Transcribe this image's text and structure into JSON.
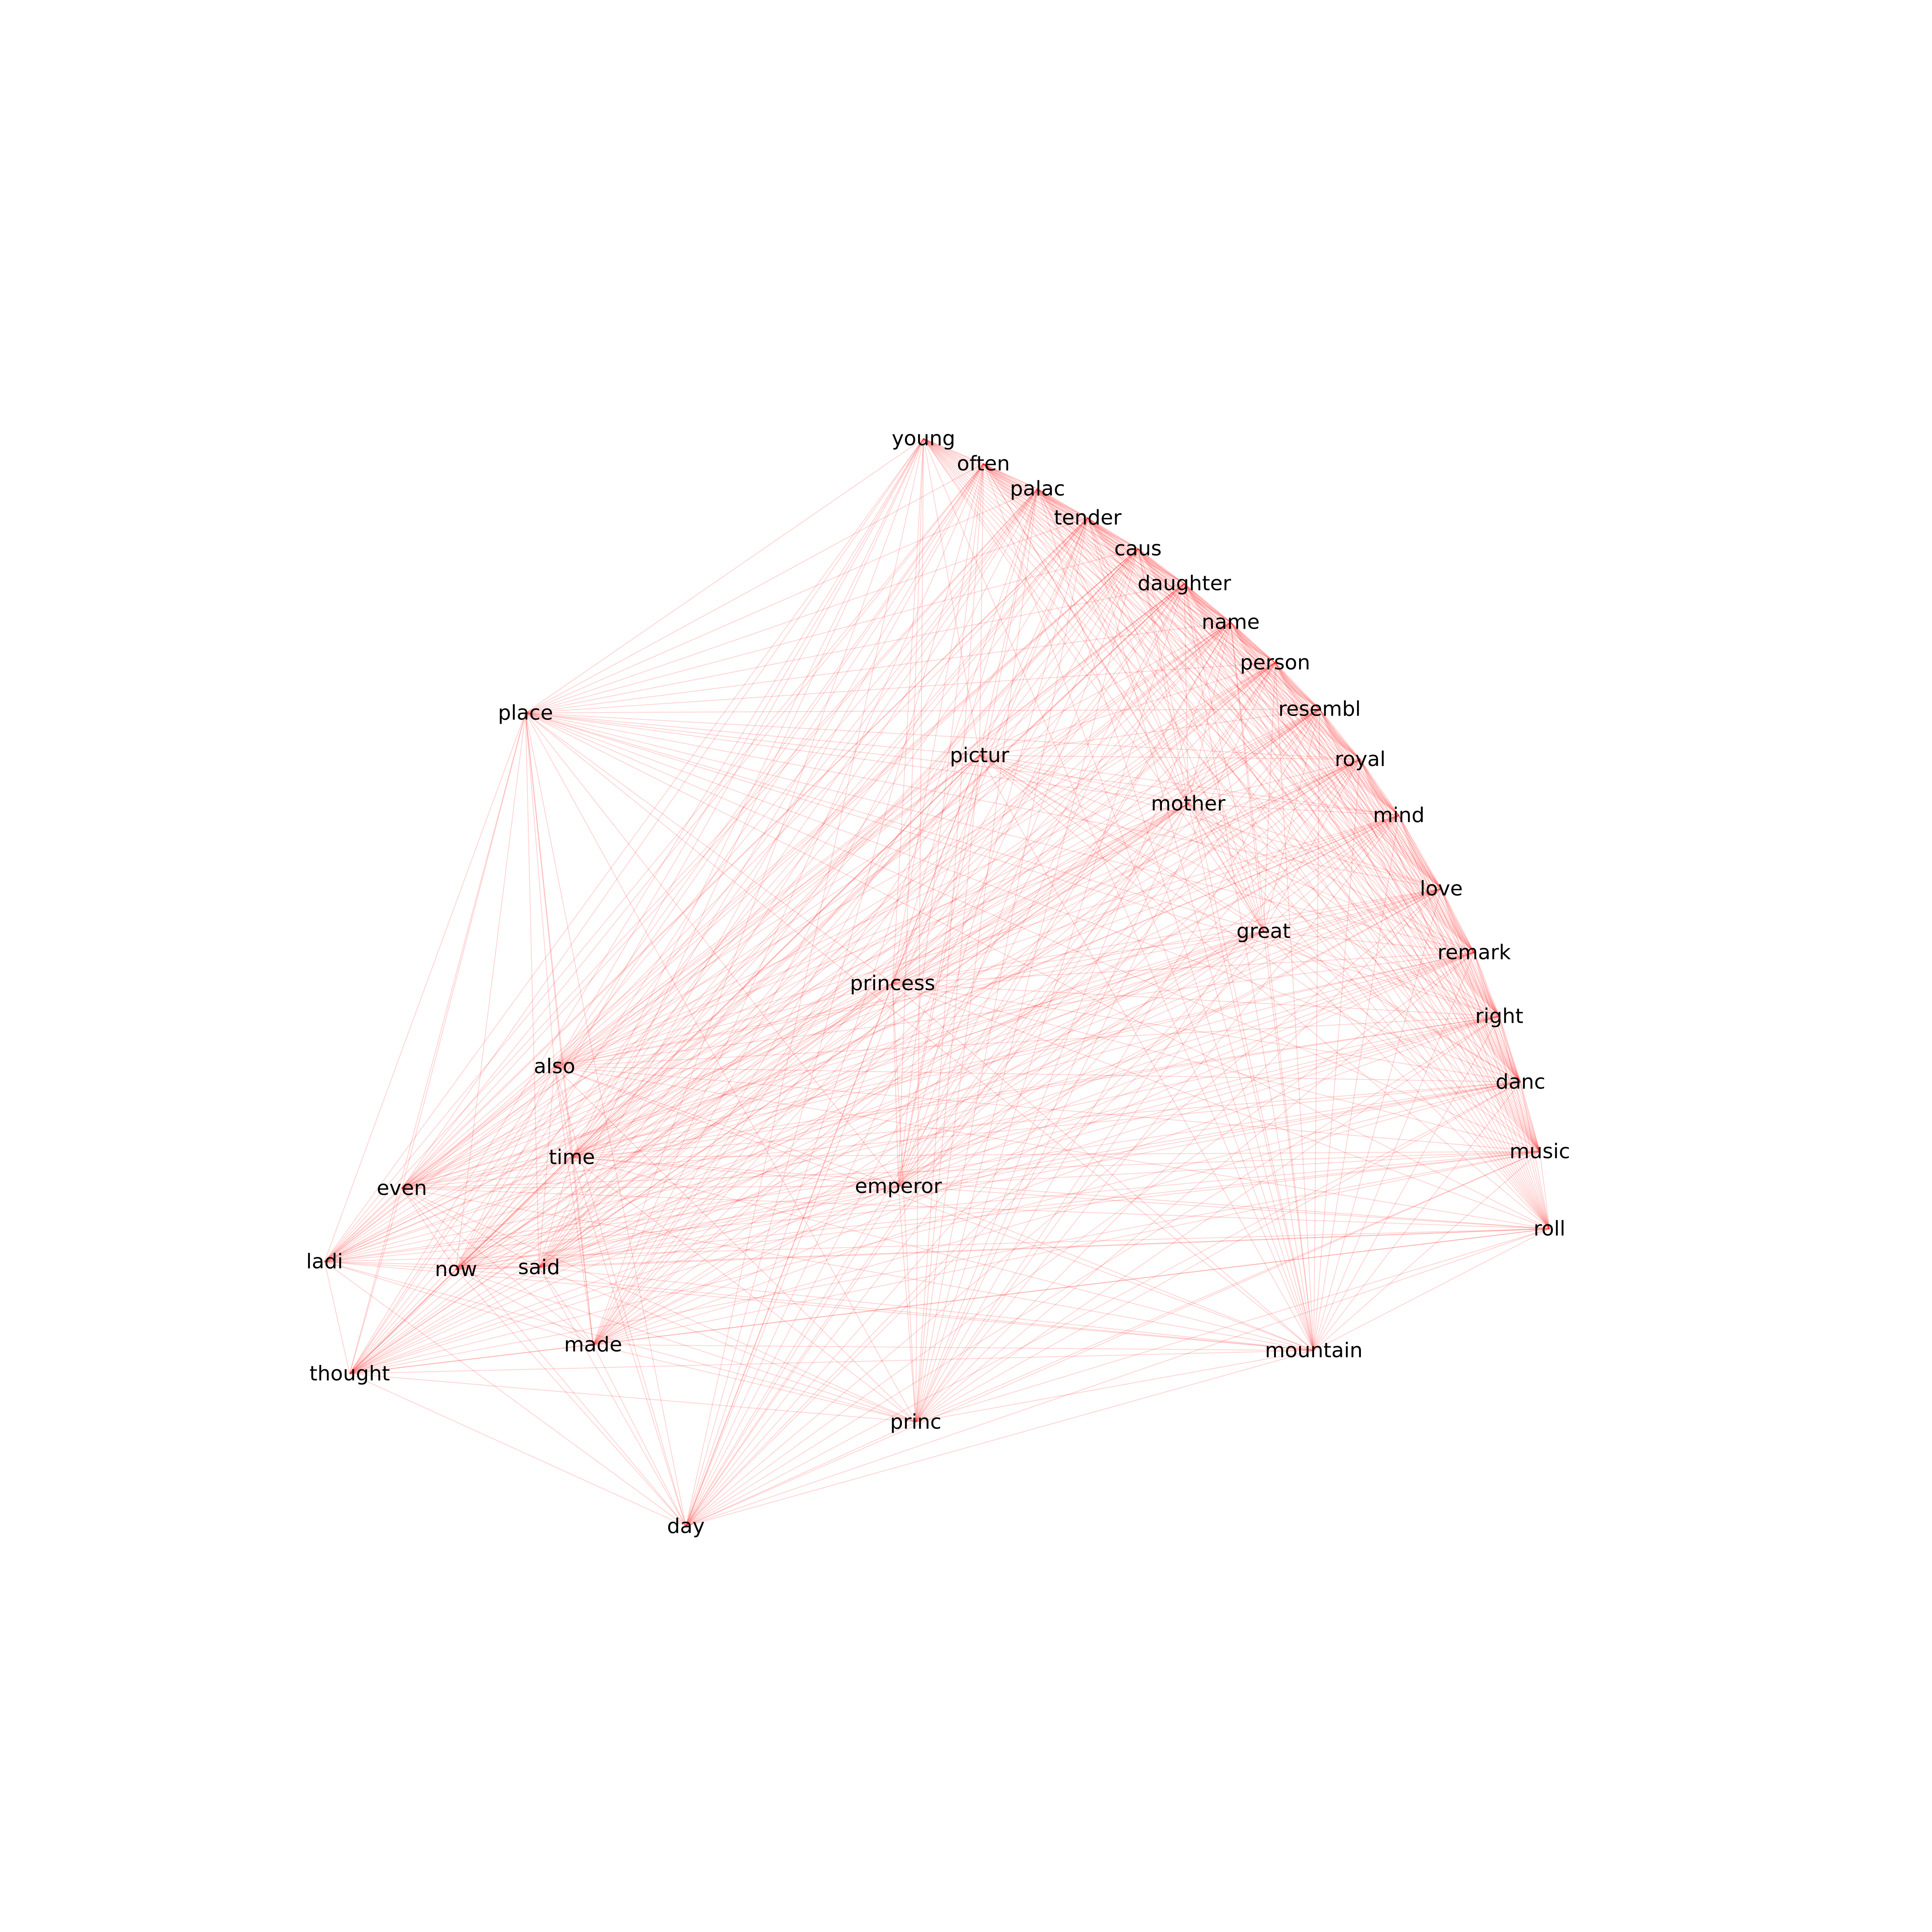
{
  "chart_data": {
    "type": "network",
    "edge_color": "#ff0000",
    "label_color": "#000000",
    "background": "#ffffff",
    "nodes": [
      {
        "id": "young",
        "label": "young"
      },
      {
        "id": "often",
        "label": "often"
      },
      {
        "id": "palac",
        "label": "palac"
      },
      {
        "id": "tender",
        "label": "tender"
      },
      {
        "id": "caus",
        "label": "caus"
      },
      {
        "id": "daughter",
        "label": "daughter"
      },
      {
        "id": "name",
        "label": "name"
      },
      {
        "id": "person",
        "label": "person"
      },
      {
        "id": "resembl",
        "label": "resembl"
      },
      {
        "id": "royal",
        "label": "royal"
      },
      {
        "id": "mind",
        "label": "mind"
      },
      {
        "id": "place",
        "label": "place"
      },
      {
        "id": "pictur",
        "label": "pictur"
      },
      {
        "id": "mother",
        "label": "mother"
      },
      {
        "id": "love",
        "label": "love"
      },
      {
        "id": "great",
        "label": "great"
      },
      {
        "id": "remark",
        "label": "remark"
      },
      {
        "id": "princess",
        "label": "princess"
      },
      {
        "id": "right",
        "label": "right"
      },
      {
        "id": "also",
        "label": "also"
      },
      {
        "id": "danc",
        "label": "danc"
      },
      {
        "id": "music",
        "label": "music"
      },
      {
        "id": "time",
        "label": "time"
      },
      {
        "id": "emperor",
        "label": "emperor"
      },
      {
        "id": "even",
        "label": "even"
      },
      {
        "id": "roll",
        "label": "roll"
      },
      {
        "id": "ladi",
        "label": "ladi"
      },
      {
        "id": "now",
        "label": "now"
      },
      {
        "id": "said",
        "label": "said"
      },
      {
        "id": "made",
        "label": "made"
      },
      {
        "id": "mountain",
        "label": "mountain"
      },
      {
        "id": "thought",
        "label": "thought"
      },
      {
        "id": "princ",
        "label": "princ"
      },
      {
        "id": "day",
        "label": "day"
      }
    ],
    "edges": "complete"
  }
}
